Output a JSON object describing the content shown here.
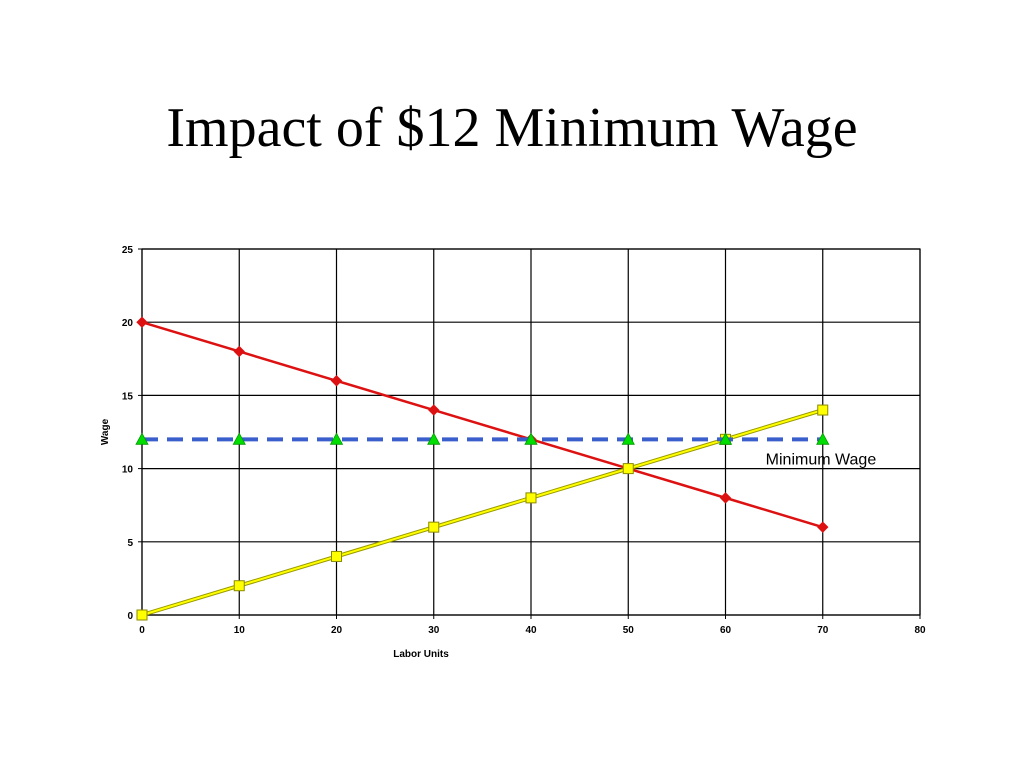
{
  "slide": {
    "title": "Impact of $12 Minimum Wage"
  },
  "chart_data": {
    "type": "line",
    "title": "",
    "xlabel": "Labor Units",
    "ylabel": "Wage",
    "xlim": [
      0,
      80
    ],
    "ylim": [
      0,
      25
    ],
    "xticks": [
      0,
      10,
      20,
      30,
      40,
      50,
      60,
      70,
      80
    ],
    "yticks": [
      0,
      5,
      10,
      15,
      20,
      25
    ],
    "grid": true,
    "legend": "none",
    "annotations": [
      {
        "text": "Minimum Wage",
        "x": 63,
        "y": 10.5
      }
    ],
    "series": [
      {
        "x": [
          0,
          10,
          20,
          30,
          40,
          50,
          60,
          70
        ],
        "values": [
          20,
          18,
          16,
          14,
          12,
          10,
          8,
          6
        ],
        "color": "#dd1111",
        "marker": "diamond",
        "line_style": "solid"
      },
      {
        "x": [
          0,
          10,
          20,
          30,
          40,
          50,
          60,
          70
        ],
        "values": [
          0,
          2,
          4,
          6,
          8,
          10,
          12,
          14
        ],
        "color": "#ffff00",
        "marker": "square",
        "line_style": "solid"
      },
      {
        "x": [
          0,
          10,
          20,
          30,
          40,
          50,
          60,
          70
        ],
        "values": [
          12,
          12,
          12,
          12,
          12,
          12,
          12,
          12
        ],
        "color": "#3a5fcd",
        "marker": "triangle",
        "marker_color": "#00dd00",
        "line_style": "dashed"
      }
    ]
  }
}
